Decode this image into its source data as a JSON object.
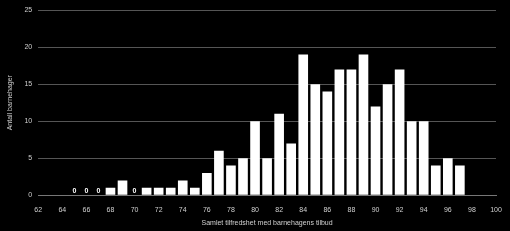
{
  "chart_data": {
    "type": "bar",
    "x_label": "Samlet tilfredshet med barnehagens tilbud",
    "y_label": "Antall barnehager",
    "x": [
      65,
      66,
      67,
      68,
      69,
      70,
      71,
      72,
      73,
      74,
      75,
      76,
      77,
      78,
      79,
      80,
      81,
      82,
      83,
      84,
      85,
      86,
      87,
      88,
      89,
      90,
      91,
      92,
      93,
      94,
      95,
      96,
      97
    ],
    "values": [
      0,
      0,
      0,
      1,
      2,
      0,
      1,
      1,
      1,
      2,
      1,
      3,
      6,
      4,
      5,
      10,
      5,
      11,
      7,
      19,
      15,
      14,
      17,
      17,
      19,
      12,
      15,
      17,
      10,
      10,
      4,
      5,
      4
    ],
    "value_labels": [
      "0",
      "0",
      "0",
      null,
      null,
      "0",
      null,
      null,
      null,
      null,
      null,
      null,
      null,
      null,
      null,
      null,
      null,
      null,
      null,
      null,
      null,
      null,
      null,
      null,
      null,
      null,
      null,
      null,
      null,
      null,
      null,
      null,
      null
    ],
    "data_labels": true,
    "color": "#ffffff",
    "xlim": [
      62,
      100
    ],
    "xticks": [
      62,
      64,
      66,
      68,
      70,
      72,
      74,
      76,
      78,
      80,
      82,
      84,
      86,
      88,
      90,
      92,
      94,
      96,
      98,
      100
    ],
    "ylim": [
      0,
      25
    ],
    "yticks": [
      0,
      5,
      10,
      15,
      20,
      25
    ],
    "grid": true
  }
}
